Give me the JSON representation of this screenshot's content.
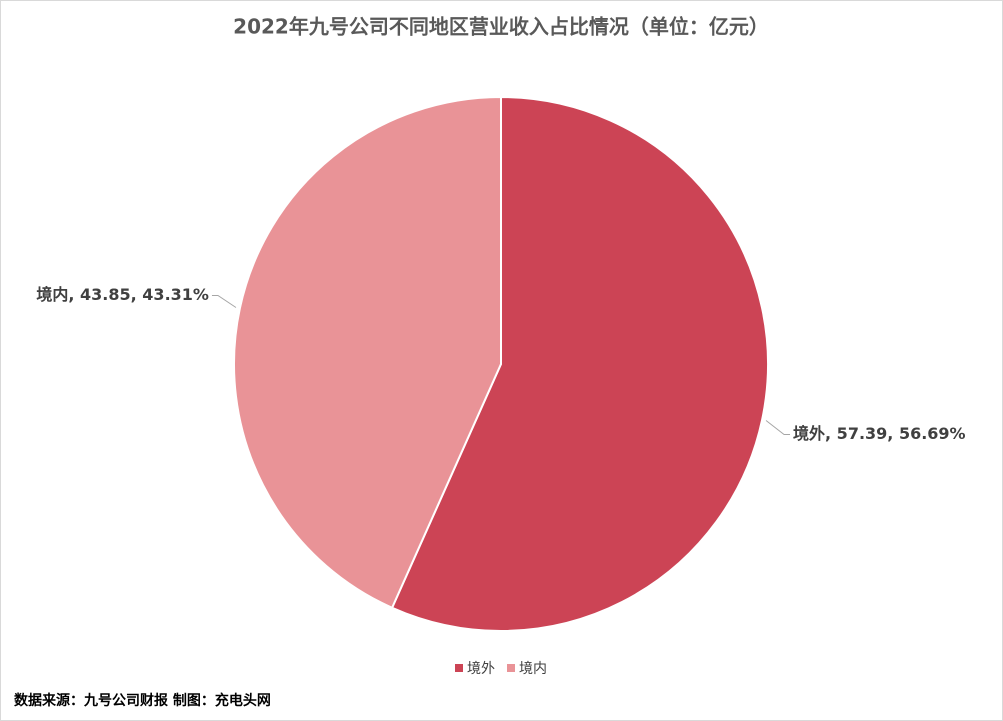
{
  "chart_data": {
    "type": "pie",
    "title": "2022年九号公司不同地区营业收入占比情况（单位：亿元）",
    "categories": [
      "境外",
      "境内"
    ],
    "values": [
      57.39,
      43.85
    ],
    "value_labels": [
      "境外, 57.39, 56.69%",
      "境内, 43.85, 43.31%"
    ],
    "colors": [
      "#cc4455",
      "#e99397"
    ],
    "legend": "bottom",
    "source": "数据来源：九号公司财报  制图：充电头网"
  }
}
